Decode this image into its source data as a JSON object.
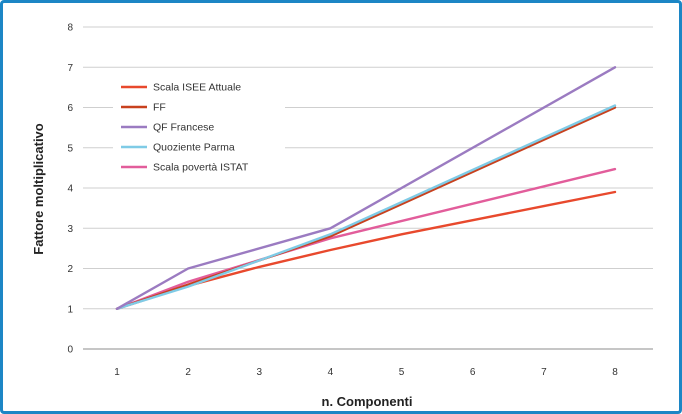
{
  "chart_data": {
    "type": "line",
    "title": "",
    "xlabel": "n. Componenti",
    "ylabel": "Fattore moltiplicativo",
    "x": [
      1,
      2,
      3,
      4,
      5,
      6,
      7,
      8
    ],
    "xlim": [
      1,
      8
    ],
    "ylim": [
      0,
      8
    ],
    "yticks": [
      0,
      1,
      2,
      3,
      4,
      5,
      6,
      7,
      8
    ],
    "grid": "horizontal",
    "legend": "top-left",
    "series": [
      {
        "name": "Scala ISEE Attuale",
        "color": "#e8492d",
        "x": [
          1,
          2,
          3,
          4,
          5,
          6,
          7,
          8
        ],
        "values": [
          1,
          1.57,
          2.04,
          2.46,
          2.85,
          3.2,
          3.55,
          3.9
        ]
      },
      {
        "name": "FF",
        "color": "#c8411e",
        "x": [
          1,
          2,
          4,
          8
        ],
        "values": [
          1,
          1.6,
          2.8,
          6.0
        ]
      },
      {
        "name": "QF Francese",
        "color": "#9b7bc1",
        "x": [
          1,
          2,
          4,
          8
        ],
        "values": [
          1,
          2.0,
          3.0,
          7.0
        ]
      },
      {
        "name": "Quoziente Parma",
        "color": "#7fcbe6",
        "x": [
          1,
          2,
          4,
          8
        ],
        "values": [
          1,
          1.55,
          2.85,
          6.05
        ]
      },
      {
        "name": "Scala povertà ISTAT",
        "color": "#e25d9b",
        "x": [
          1,
          2,
          4,
          8
        ],
        "values": [
          1,
          1.67,
          2.75,
          4.47
        ]
      }
    ]
  }
}
